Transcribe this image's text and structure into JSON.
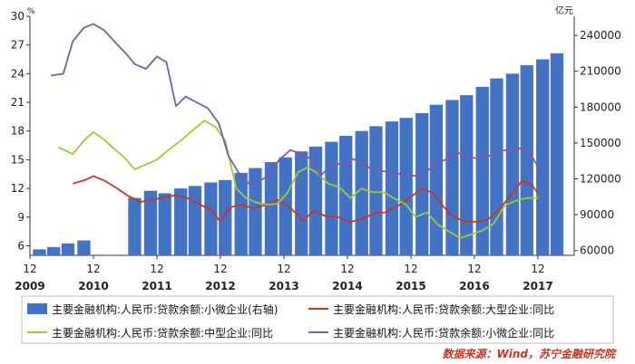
{
  "chart_data": {
    "type": "bar",
    "left_unit": "%",
    "right_unit": "亿元",
    "left_ylim": [
      5,
      30
    ],
    "left_ticks": [
      "6",
      "9",
      "12",
      "15",
      "18",
      "21",
      "24",
      "27",
      "30"
    ],
    "right_ylim": [
      56000,
      256000
    ],
    "right_ticks": [
      "60000",
      "90000",
      "120000",
      "150000",
      "180000",
      "210000",
      "240000"
    ],
    "x_ticks": [
      {
        "month": "12",
        "year": "2009",
        "t": 0
      },
      {
        "month": "12",
        "year": "2010",
        "t": 4
      },
      {
        "month": "12",
        "year": "2011",
        "t": 8
      },
      {
        "month": "12",
        "year": "2012",
        "t": 12
      },
      {
        "month": "12",
        "year": "2013",
        "t": 16
      },
      {
        "month": "12",
        "year": "2014",
        "t": 20
      },
      {
        "month": "12",
        "year": "2015",
        "t": 24
      },
      {
        "month": "12",
        "year": "2016",
        "t": 28
      },
      {
        "month": "12",
        "year": "2017",
        "t": 32
      }
    ],
    "x_range": [
      0,
      33.3
    ],
    "bars": {
      "name": "主要金融机构:人民币:贷款余额:小微企业(右轴)",
      "axis": "right",
      "color": "#4472c4",
      "points": [
        {
          "t": 0.6,
          "v": 61000
        },
        {
          "t": 1.5,
          "v": 63000
        },
        {
          "t": 2.4,
          "v": 66000
        },
        {
          "t": 3.4,
          "v": 68500
        },
        {
          "t": 6.6,
          "v": 104000
        },
        {
          "t": 7.6,
          "v": 110000
        },
        {
          "t": 8.5,
          "v": 108000
        },
        {
          "t": 9.5,
          "v": 112000
        },
        {
          "t": 10.4,
          "v": 114000
        },
        {
          "t": 11.4,
          "v": 117000
        },
        {
          "t": 12.3,
          "v": 119000
        },
        {
          "t": 13.3,
          "v": 125000
        },
        {
          "t": 14.2,
          "v": 129000
        },
        {
          "t": 15.2,
          "v": 134000
        },
        {
          "t": 16.1,
          "v": 138000
        },
        {
          "t": 17.1,
          "v": 143000
        },
        {
          "t": 18.0,
          "v": 147000
        },
        {
          "t": 19.0,
          "v": 151000
        },
        {
          "t": 19.9,
          "v": 156000
        },
        {
          "t": 20.9,
          "v": 160000
        },
        {
          "t": 21.8,
          "v": 164000
        },
        {
          "t": 22.8,
          "v": 168000
        },
        {
          "t": 23.7,
          "v": 171000
        },
        {
          "t": 24.7,
          "v": 175000
        },
        {
          "t": 25.6,
          "v": 182000
        },
        {
          "t": 26.6,
          "v": 186000
        },
        {
          "t": 27.5,
          "v": 190000
        },
        {
          "t": 28.5,
          "v": 197000
        },
        {
          "t": 29.4,
          "v": 204000
        },
        {
          "t": 30.4,
          "v": 208000
        },
        {
          "t": 31.3,
          "v": 215000
        },
        {
          "t": 32.3,
          "v": 220000
        },
        {
          "t": 33.2,
          "v": 225000
        }
      ]
    },
    "series": [
      {
        "name": "主要金融机构:人民币:贷款余额:大型企业:同比",
        "axis": "left",
        "color": "#c0392b",
        "segments": [
          [
            [
              2.7,
              12.5
            ],
            [
              3.5,
              12.9
            ],
            [
              4.0,
              13.3
            ],
            [
              4.7,
              12.8
            ],
            [
              5.5,
              12.0
            ],
            [
              6.2,
              11.2
            ],
            [
              7.0,
              10.6
            ],
            [
              7.7,
              10.8
            ],
            [
              8.5,
              11.1
            ],
            [
              9.2,
              11.3
            ],
            [
              9.9,
              11.0
            ],
            [
              10.7,
              10.3
            ],
            [
              11.4,
              9.8
            ],
            [
              12.0,
              8.5
            ],
            [
              12.6,
              10.0
            ],
            [
              13.3,
              10.3
            ],
            [
              14.1,
              9.9
            ],
            [
              14.9,
              10.3
            ],
            [
              15.6,
              10.8
            ],
            [
              16.4,
              10.0
            ],
            [
              17.2,
              8.6
            ],
            [
              17.9,
              9.7
            ],
            [
              18.6,
              9.1
            ],
            [
              19.4,
              9.0
            ],
            [
              20.2,
              8.5
            ],
            [
              20.9,
              8.8
            ],
            [
              21.7,
              9.4
            ],
            [
              22.4,
              9.5
            ],
            [
              23.2,
              10.2
            ],
            [
              23.9,
              11.0
            ],
            [
              24.7,
              12.0
            ],
            [
              25.4,
              11.5
            ],
            [
              26.0,
              10.2
            ],
            [
              26.6,
              9.1
            ],
            [
              27.3,
              8.6
            ],
            [
              28.1,
              8.5
            ],
            [
              28.8,
              8.7
            ],
            [
              29.5,
              9.7
            ],
            [
              30.3,
              11.3
            ],
            [
              31.0,
              12.8
            ],
            [
              31.6,
              12.4
            ],
            [
              32.0,
              11.5
            ]
          ]
        ]
      },
      {
        "name": "主要金融机构:人民币:贷款余额:中型企业:同比",
        "axis": "left",
        "color": "#9acd32",
        "segments": [
          [
            [
              1.8,
              16.3
            ],
            [
              2.7,
              15.6
            ],
            [
              3.4,
              17.0
            ],
            [
              4.0,
              17.9
            ],
            [
              4.6,
              17.2
            ],
            [
              5.2,
              16.3
            ],
            [
              5.9,
              15.3
            ],
            [
              6.6,
              14.0
            ],
            [
              7.3,
              14.5
            ],
            [
              8.0,
              15.0
            ],
            [
              8.7,
              16.0
            ],
            [
              9.5,
              17.0
            ],
            [
              10.2,
              18.0
            ],
            [
              11.0,
              19.1
            ],
            [
              11.7,
              18.4
            ],
            [
              12.3,
              17.0
            ],
            [
              13.0,
              12.0
            ],
            [
              13.6,
              11.0
            ],
            [
              14.3,
              10.5
            ],
            [
              15.0,
              10.3
            ],
            [
              15.6,
              10.4
            ],
            [
              16.2,
              11.5
            ],
            [
              16.9,
              13.7
            ],
            [
              17.5,
              14.2
            ],
            [
              18.1,
              13.6
            ],
            [
              18.8,
              12.5
            ],
            [
              19.5,
              12.1
            ],
            [
              20.2,
              11.0
            ],
            [
              20.9,
              12.0
            ],
            [
              21.6,
              11.6
            ],
            [
              22.3,
              11.6
            ],
            [
              23.0,
              10.9
            ],
            [
              23.7,
              10.3
            ],
            [
              24.3,
              9.0
            ],
            [
              25.0,
              9.5
            ],
            [
              25.7,
              8.2
            ],
            [
              26.4,
              7.5
            ],
            [
              27.1,
              6.8
            ],
            [
              27.8,
              7.2
            ],
            [
              28.5,
              7.6
            ],
            [
              29.2,
              8.3
            ],
            [
              29.9,
              10.2
            ],
            [
              30.6,
              10.7
            ],
            [
              31.3,
              11.0
            ],
            [
              32.0,
              11.0
            ]
          ]
        ]
      },
      {
        "name": "主要金融机构:人民币:贷款余额:小微企业:同比",
        "axis": "left",
        "color": "#7d5ba6",
        "segments": [
          [
            [
              1.3,
              23.8
            ],
            [
              2.1,
              24.0
            ],
            [
              2.7,
              27.4
            ],
            [
              3.4,
              28.8
            ],
            [
              4.0,
              29.2
            ],
            [
              4.7,
              28.5
            ],
            [
              5.3,
              27.4
            ],
            [
              6.0,
              26.2
            ],
            [
              6.6,
              25.0
            ],
            [
              7.3,
              24.5
            ],
            [
              8.0,
              25.8
            ],
            [
              8.6,
              25.2
            ],
            [
              9.2,
              20.6
            ],
            [
              9.8,
              21.6
            ],
            [
              10.5,
              21.0
            ],
            [
              11.2,
              20.4
            ],
            [
              11.9,
              18.8
            ],
            [
              12.5,
              15.4
            ],
            [
              13.2,
              13.5
            ],
            [
              13.8,
              12.5
            ],
            [
              14.5,
              12.8
            ],
            [
              15.1,
              13.4
            ],
            [
              15.7,
              15.0
            ],
            [
              16.4,
              16.0
            ],
            [
              17.0,
              15.7
            ],
            [
              17.7,
              15.1
            ],
            [
              18.3,
              13.3
            ],
            [
              19.0,
              14.5
            ],
            [
              19.7,
              14.6
            ],
            [
              20.3,
              15.1
            ],
            [
              21.0,
              14.6
            ],
            [
              21.7,
              13.8
            ],
            [
              22.3,
              13.8
            ],
            [
              23.0,
              13.6
            ],
            [
              23.7,
              13.4
            ],
            [
              24.3,
              13.3
            ],
            [
              25.0,
              13.8
            ],
            [
              25.6,
              14.6
            ],
            [
              26.3,
              15.1
            ],
            [
              27.0,
              15.7
            ],
            [
              27.6,
              15.3
            ],
            [
              28.3,
              15.1
            ],
            [
              28.9,
              15.4
            ],
            [
              29.6,
              15.9
            ],
            [
              30.3,
              16.1
            ],
            [
              31.0,
              16.2
            ],
            [
              31.6,
              15.4
            ],
            [
              32.3,
              13.4
            ]
          ]
        ]
      }
    ],
    "legend": [
      {
        "label": "主要金融机构:人民币:贷款余额:小微企业(右轴)",
        "kind": "bar",
        "color": "#4472c4"
      },
      {
        "label": "主要金融机构:人民币:贷款余额:大型企业:同比",
        "kind": "line",
        "color": "#c0392b"
      },
      {
        "label": "主要金融机构:人民币:贷款余额:中型企业:同比",
        "kind": "line",
        "color": "#9acd32"
      },
      {
        "label": "主要金融机构:人民币:贷款余额:小微企业:同比",
        "kind": "line",
        "color": "#7d5ba6"
      }
    ],
    "source": "数据来源：Wind，苏宁金融研究院",
    "source_color": "#c0392b",
    "grid": false
  }
}
